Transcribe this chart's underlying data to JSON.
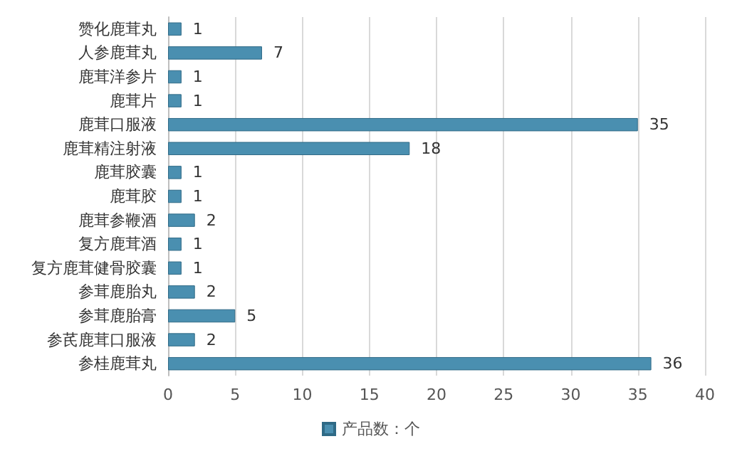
{
  "chart_data": {
    "type": "bar",
    "orientation": "horizontal",
    "categories": [
      "赞化鹿茸丸",
      "人参鹿茸丸",
      "鹿茸洋参片",
      "鹿茸片",
      "鹿茸口服液",
      "鹿茸精注射液",
      "鹿茸胶囊",
      "鹿茸胶",
      "鹿茸参鞭酒",
      "复方鹿茸酒",
      "复方鹿茸健骨胶囊",
      "参茸鹿胎丸",
      "参茸鹿胎膏",
      "参芪鹿茸口服液",
      "参桂鹿茸丸"
    ],
    "series": [
      {
        "name": "产品数：个",
        "color": "#4a8fb0",
        "values": [
          1,
          7,
          1,
          1,
          35,
          18,
          1,
          1,
          2,
          1,
          1,
          2,
          5,
          2,
          36
        ]
      }
    ],
    "xlim": [
      0,
      40
    ],
    "xticks": [
      0,
      5,
      10,
      15,
      20,
      25,
      30,
      35,
      40
    ],
    "grid": "x",
    "legend": "bottom",
    "data_labels": true
  }
}
